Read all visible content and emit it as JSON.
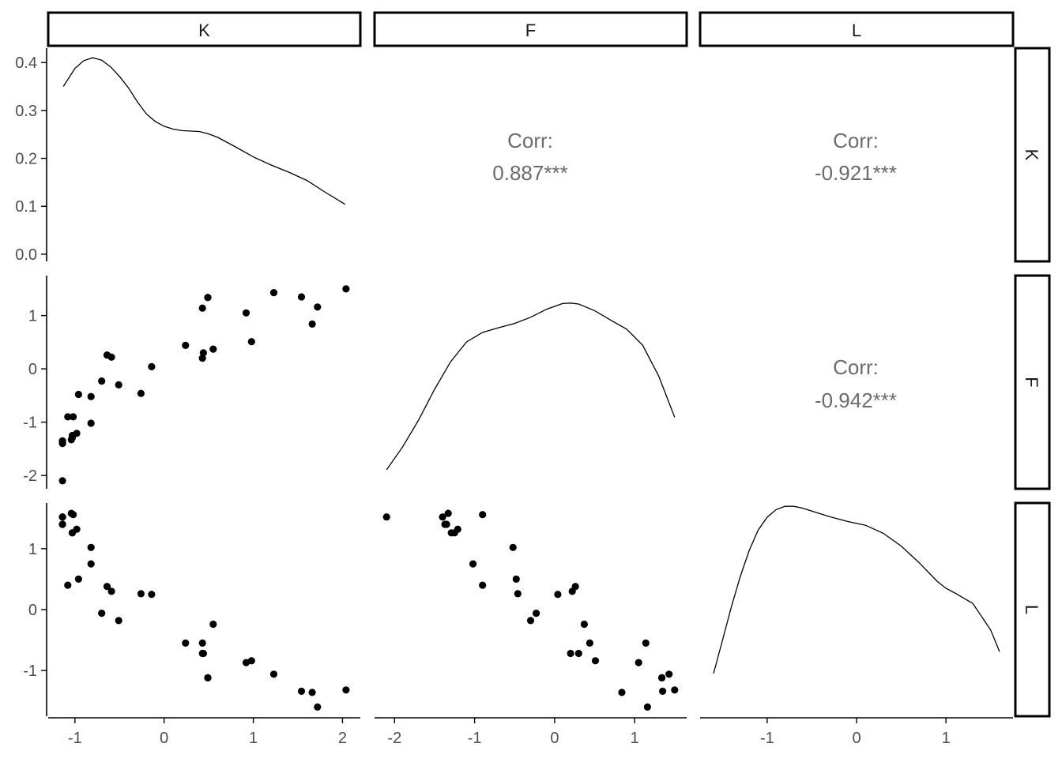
{
  "chart_data": {
    "type": "scatter",
    "variables": [
      "K",
      "F",
      "L"
    ],
    "strip_labels": {
      "columns": [
        "K",
        "F",
        "L"
      ],
      "rows": [
        "K",
        "F",
        "L"
      ]
    },
    "corr_label": "Corr:",
    "correlations": [
      {
        "row": "K",
        "col": "F",
        "value": "0.887***"
      },
      {
        "row": "K",
        "col": "L",
        "value": "-0.921***"
      },
      {
        "row": "F",
        "col": "L",
        "value": "-0.942***"
      }
    ],
    "x_ticks": {
      "K": [
        "-1",
        "0",
        "1",
        "2"
      ],
      "F": [
        "-2",
        "-1",
        "0",
        "1"
      ],
      "L": [
        "-1",
        "0",
        "1"
      ]
    },
    "y_ticks": {
      "K_density": [
        "0.0",
        "0.1",
        "0.2",
        "0.3",
        "0.4"
      ],
      "F": [
        "-2",
        "-1",
        "0",
        "1"
      ],
      "L": [
        "-1",
        "0",
        "1"
      ]
    },
    "x_ranges": {
      "K": [
        -1.3,
        2.2
      ],
      "F": [
        -2.25,
        1.65
      ],
      "L": [
        -1.75,
        1.75
      ]
    },
    "y_ranges": {
      "K_density": [
        -0.015,
        0.43
      ],
      "F": [
        -2.25,
        1.75
      ],
      "L": [
        -1.75,
        1.75
      ]
    },
    "density": {
      "K": {
        "x": [
          -1.13,
          -1.0,
          -0.9,
          -0.8,
          -0.7,
          -0.6,
          -0.5,
          -0.4,
          -0.3,
          -0.2,
          -0.1,
          0.0,
          0.1,
          0.2,
          0.3,
          0.4,
          0.5,
          0.6,
          0.8,
          1.0,
          1.2,
          1.4,
          1.6,
          1.8,
          2.03
        ],
        "y": [
          0.35,
          0.388,
          0.404,
          0.41,
          0.405,
          0.391,
          0.371,
          0.347,
          0.318,
          0.293,
          0.277,
          0.267,
          0.261,
          0.258,
          0.257,
          0.256,
          0.251,
          0.244,
          0.224,
          0.203,
          0.186,
          0.171,
          0.154,
          0.13,
          0.104
        ]
      },
      "F": {
        "x": [
          -2.1,
          -1.9,
          -1.7,
          -1.5,
          -1.3,
          -1.1,
          -0.9,
          -0.7,
          -0.5,
          -0.3,
          -0.1,
          0.1,
          0.2,
          0.3,
          0.5,
          0.7,
          0.9,
          1.1,
          1.3,
          1.5
        ],
        "y": [
          0.04,
          0.088,
          0.145,
          0.21,
          0.268,
          0.31,
          0.33,
          0.34,
          0.349,
          0.362,
          0.379,
          0.391,
          0.392,
          0.39,
          0.376,
          0.356,
          0.337,
          0.303,
          0.238,
          0.151
        ]
      },
      "L": {
        "x": [
          -1.6,
          -1.5,
          -1.4,
          -1.3,
          -1.2,
          -1.1,
          -1.0,
          -0.9,
          -0.8,
          -0.7,
          -0.6,
          -0.5,
          -0.3,
          -0.1,
          0.1,
          0.3,
          0.5,
          0.7,
          0.9,
          1.0,
          1.1,
          1.3,
          1.5,
          1.6
        ],
        "y": [
          0.09,
          0.16,
          0.231,
          0.295,
          0.35,
          0.393,
          0.42,
          0.436,
          0.443,
          0.443,
          0.439,
          0.433,
          0.421,
          0.411,
          0.403,
          0.386,
          0.359,
          0.324,
          0.285,
          0.27,
          0.26,
          0.238,
          0.182,
          0.136
        ]
      }
    },
    "points": {
      "K": [
        -1.14,
        -1.14,
        -1.14,
        -1.14,
        -1.08,
        -1.04,
        -1.03,
        -1.03,
        -1.02,
        -0.98,
        -0.96,
        -0.82,
        -0.82,
        -0.7,
        -0.64,
        -0.59,
        -0.51,
        -0.26,
        -0.14,
        0.24,
        0.43,
        0.43,
        0.44,
        0.49,
        0.49,
        0.55,
        0.92,
        0.98,
        1.23,
        1.54,
        1.66,
        1.72,
        2.04
      ],
      "F": [
        -2.1,
        -1.37,
        -1.4,
        -1.35,
        -0.9,
        -1.33,
        -1.25,
        -1.29,
        -0.9,
        -1.21,
        -0.48,
        -0.52,
        -1.02,
        -0.23,
        0.26,
        0.22,
        -0.3,
        -0.46,
        0.04,
        0.44,
        1.14,
        0.2,
        0.3,
        1.34,
        1.34,
        0.37,
        1.05,
        0.51,
        1.43,
        1.35,
        0.84,
        1.16,
        1.5
      ],
      "L": [
        1.52,
        1.4,
        1.52,
        1.4,
        0.4,
        1.58,
        1.26,
        1.26,
        1.56,
        1.32,
        0.5,
        1.02,
        0.75,
        -0.06,
        0.38,
        0.3,
        -0.18,
        0.26,
        0.25,
        -0.55,
        -0.55,
        -0.72,
        -0.72,
        -1.12,
        -1.12,
        -0.24,
        -0.87,
        -0.84,
        -1.06,
        -1.34,
        -1.36,
        -1.6,
        -1.32
      ]
    }
  }
}
